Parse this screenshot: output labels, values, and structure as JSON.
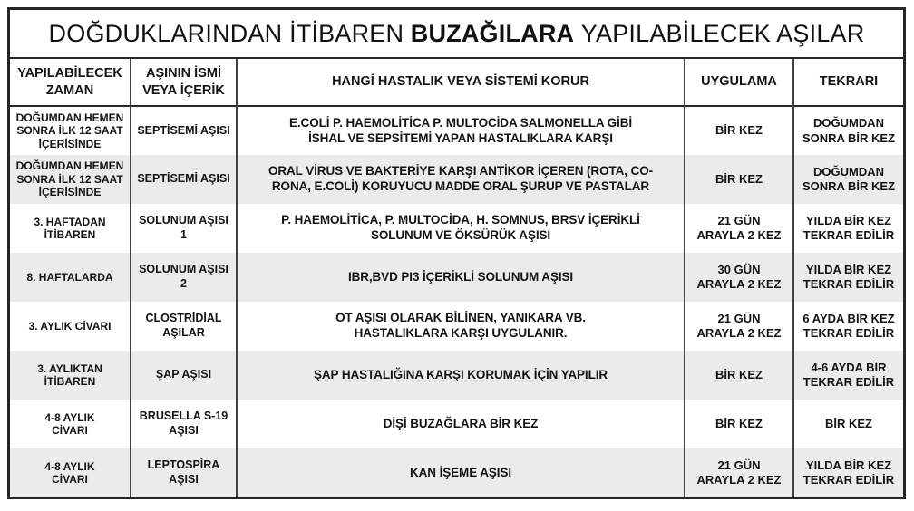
{
  "title": {
    "pre": "DOĞDUKLARINDAN İTİBAREN",
    "bold": "BUZAĞILARA",
    "post": "YAPILABİLECEK AŞILAR"
  },
  "table": {
    "headers": {
      "time": "YAPILABİLECEK\nZAMAN",
      "vaccine": "AŞININ İSMİ\nVEYA İÇERİK",
      "disease": "HANGİ HASTALIK VEYA SİSTEMİ KORUR",
      "application": "UYGULAMA",
      "repeat": "TEKRARI"
    },
    "rows": [
      {
        "time": "DOĞUMDAN HEMEN\nSONRA İLK 12 SAAT\nİÇERİSİNDE",
        "vaccine": "SEPTİSEMİ AŞISI",
        "disease": "E.COLİ P. HAEMOLİTİCA P. MULTOCİDA SALMONELLA GİBİ\nİSHAL VE SEPSİTEMİ YAPAN HASTALIKLARA KARŞI",
        "application": "BİR KEZ",
        "repeat": "DOĞUMDAN\nSONRA BİR KEZ"
      },
      {
        "time": "DOĞUMDAN HEMEN\nSONRA İLK 12 SAAT\nİÇERİSİNDE",
        "vaccine": "SEPTİSEMİ AŞISI",
        "disease": "ORAL VİRUS VE BAKTERİYE KARŞI ANTİKOR İÇEREN (ROTA, CO-\nRONA, E.COLİ) KORUYUCU MADDE ORAL ŞURUP VE PASTALAR",
        "application": "BİR KEZ",
        "repeat": "DOĞUMDAN\nSONRA BİR KEZ"
      },
      {
        "time": "3. HAFTADAN\nİTİBAREN",
        "vaccine": "SOLUNUM AŞISI\n1",
        "disease": "P. HAEMOLİTİCA, P. MULTOCİDA, H. SOMNUS, BRSV İÇERİKLİ\nSOLUNUM VE ÖKSÜRÜK AŞISI",
        "application": "21 GÜN\nARAYLA 2 KEZ",
        "repeat": "YILDA BİR KEZ\nTEKRAR EDİLİR"
      },
      {
        "time": "8. HAFTALARDA",
        "vaccine": "SOLUNUM AŞISI\n2",
        "disease": "IBR,BVD PI3 İÇERİKLİ SOLUNUM AŞISI",
        "application": "30 GÜN\nARAYLA 2 KEZ",
        "repeat": "YILDA BİR KEZ\nTEKRAR EDİLİR"
      },
      {
        "time": "3. AYLIK CİVARI",
        "vaccine": "CLOSTRİDİAL\nAŞILAR",
        "disease": "OT AŞISI OLARAK BİLİNEN, YANIKARA VB.\nHASTALIKLARA KARŞI UYGULANIR.",
        "application": "21 GÜN\nARAYLA 2 KEZ",
        "repeat": "6 AYDA BİR KEZ\nTEKRAR EDİLİR"
      },
      {
        "time": "3. AYLIKTAN\nİTİBAREN",
        "vaccine": "ŞAP AŞISI",
        "disease": "ŞAP HASTALIĞINA KARŞI KORUMAK İÇİN YAPILIR",
        "application": "BİR KEZ",
        "repeat": "4-6 AYDA BİR\nTEKRAR EDİLİR"
      },
      {
        "time": "4-8 AYLIK\nCİVARI",
        "vaccine": "BRUSELLA S-19\nAŞISI",
        "disease": "DİŞİ BUZAĞLARA BİR KEZ",
        "application": "BİR KEZ",
        "repeat": "BİR KEZ"
      },
      {
        "time": "4-8 AYLIK\nCİVARI",
        "vaccine": "LEPTOSPİRA\nAŞISI",
        "disease": "KAN İŞEME AŞISI",
        "application": "21 GÜN\nARAYLA 2 KEZ",
        "repeat": "YILDA BİR KEZ\nTEKRAR EDİLİR"
      }
    ]
  },
  "colors": {
    "border": "#262626",
    "row_alt": "#ebebeb",
    "text": "#141414"
  }
}
